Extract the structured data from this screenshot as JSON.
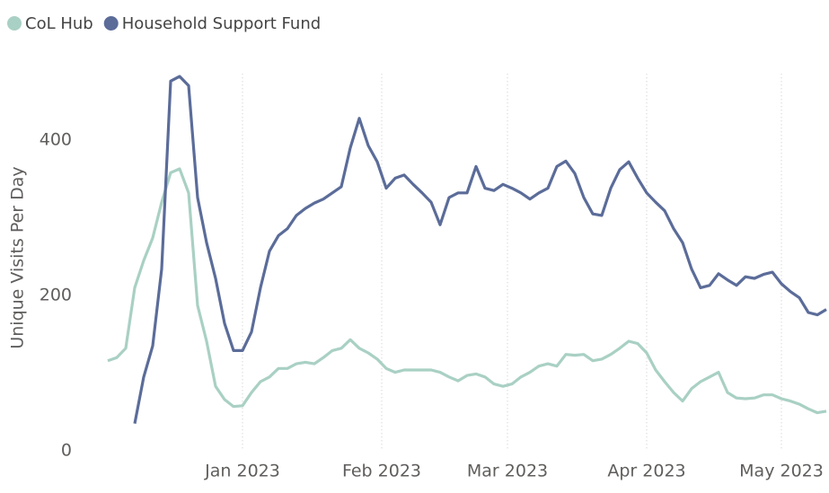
{
  "chart_data": {
    "type": "line",
    "y_label": "Unique Visits Per Day",
    "x": [
      "2022-12-02",
      "2022-12-04",
      "2022-12-06",
      "2022-12-08",
      "2022-12-10",
      "2022-12-12",
      "2022-12-14",
      "2022-12-16",
      "2022-12-18",
      "2022-12-20",
      "2022-12-22",
      "2022-12-24",
      "2022-12-26",
      "2022-12-28",
      "2022-12-30",
      "2023-01-01",
      "2023-01-03",
      "2023-01-05",
      "2023-01-07",
      "2023-01-09",
      "2023-01-11",
      "2023-01-13",
      "2023-01-15",
      "2023-01-17",
      "2023-01-19",
      "2023-01-21",
      "2023-01-23",
      "2023-01-25",
      "2023-01-27",
      "2023-01-29",
      "2023-01-31",
      "2023-02-02",
      "2023-02-04",
      "2023-02-06",
      "2023-02-08",
      "2023-02-10",
      "2023-02-12",
      "2023-02-14",
      "2023-02-16",
      "2023-02-18",
      "2023-02-20",
      "2023-02-22",
      "2023-02-24",
      "2023-02-26",
      "2023-02-28",
      "2023-03-02",
      "2023-03-04",
      "2023-03-06",
      "2023-03-08",
      "2023-03-10",
      "2023-03-12",
      "2023-03-14",
      "2023-03-16",
      "2023-03-18",
      "2023-03-20",
      "2023-03-22",
      "2023-03-24",
      "2023-03-26",
      "2023-03-28",
      "2023-03-30",
      "2023-04-01",
      "2023-04-03",
      "2023-04-05",
      "2023-04-07",
      "2023-04-09",
      "2023-04-11",
      "2023-04-13",
      "2023-04-15",
      "2023-04-17",
      "2023-04-19",
      "2023-04-21",
      "2023-04-23",
      "2023-04-25",
      "2023-04-27",
      "2023-04-29",
      "2023-05-01",
      "2023-05-03",
      "2023-05-05",
      "2023-05-07",
      "2023-05-09",
      "2023-05-11"
    ],
    "series": [
      {
        "name": "CoL Hub",
        "color": "#a9d0c4",
        "values": [
          116,
          120,
          132,
          210,
          245,
          274,
          320,
          358,
          363,
          332,
          187,
          141,
          83,
          66,
          57,
          58,
          75,
          89,
          95,
          106,
          106,
          112,
          114,
          112,
          120,
          129,
          132,
          143,
          132,
          126,
          118,
          106,
          101,
          104,
          104,
          104,
          104,
          101,
          95,
          90,
          97,
          99,
          95,
          86,
          83,
          86,
          95,
          101,
          109,
          112,
          109,
          124,
          123,
          124,
          116,
          118,
          124,
          132,
          141,
          138,
          126,
          104,
          89,
          75,
          64,
          80,
          89,
          95,
          101,
          75,
          68,
          67,
          68,
          72,
          72,
          67,
          64,
          60,
          54,
          49,
          51
        ]
      },
      {
        "name": "Household Support Fund",
        "color": "#5b6c99",
        "values": [
          null,
          null,
          null,
          35,
          95,
          135,
          234,
          476,
          482,
          470,
          326,
          268,
          222,
          164,
          129,
          129,
          153,
          210,
          257,
          277,
          286,
          303,
          312,
          319,
          324,
          332,
          340,
          390,
          428,
          393,
          372,
          338,
          351,
          355,
          343,
          332,
          320,
          291,
          326,
          332,
          332,
          366,
          338,
          335,
          343,
          338,
          332,
          324,
          332,
          338,
          366,
          373,
          357,
          326,
          305,
          303,
          338,
          362,
          372,
          351,
          332,
          320,
          309,
          286,
          268,
          234,
          210,
          213,
          228,
          220,
          213,
          224,
          222,
          227,
          230,
          215,
          205,
          197,
          178,
          175,
          182
        ]
      }
    ],
    "xlim": [
      "2022-11-27",
      "2023-05-11"
    ],
    "xticks": [
      {
        "value": "2023-01-01",
        "label": "Jan 2023"
      },
      {
        "value": "2023-02-01",
        "label": "Feb 2023"
      },
      {
        "value": "2023-03-01",
        "label": "Mar 2023"
      },
      {
        "value": "2023-04-01",
        "label": "Apr 2023"
      },
      {
        "value": "2023-05-01",
        "label": "May 2023"
      }
    ],
    "ylim": [
      0,
      520
    ],
    "yticks": [
      0,
      200,
      400
    ],
    "grid": "x",
    "legend": "top-left"
  }
}
